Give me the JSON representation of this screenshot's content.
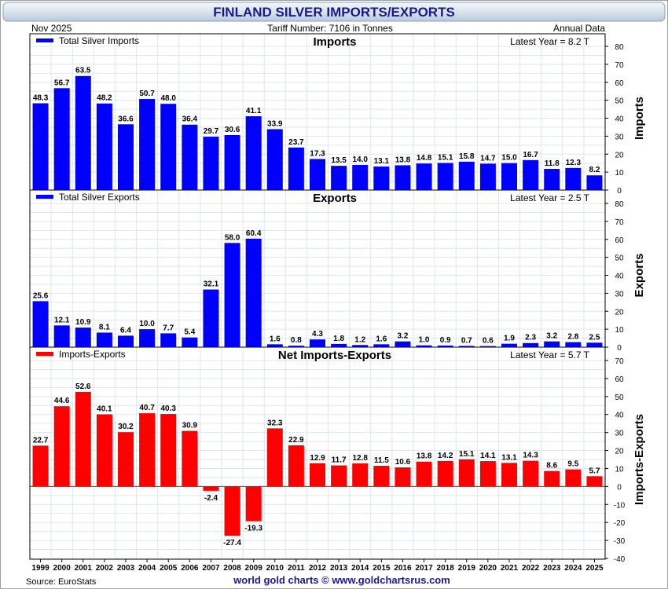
{
  "header": {
    "title": "FINLAND SILVER IMPORTS/EXPORTS",
    "date": "Nov  2025",
    "tariff": "Tariff Number: 7106 in Tonnes",
    "frequency": "Annual Data"
  },
  "footer": {
    "source": "Source: EuroStats",
    "credit": "world gold charts © www.goldchartsrus.com"
  },
  "colors": {
    "imports": "#0000ff",
    "exports": "#0000ff",
    "net": "#ff0000",
    "title_text": "#1a1a8c",
    "background": "#ffffff",
    "grid": "#dde6ee"
  },
  "chart_data": [
    {
      "type": "bar",
      "title": "Imports",
      "legend": "Total Silver Imports",
      "latest": "Latest Year = 8.2 T",
      "ylabel": "Imports",
      "ylim": [
        0,
        80
      ],
      "yticks": [
        0,
        10,
        20,
        30,
        40,
        50,
        60,
        70,
        80
      ],
      "categories": [
        "1999",
        "2000",
        "2001",
        "2002",
        "2003",
        "2004",
        "2005",
        "2006",
        "2007",
        "2008",
        "2009",
        "2010",
        "2011",
        "2012",
        "2013",
        "2014",
        "2015",
        "2016",
        "2017",
        "2018",
        "2019",
        "2020",
        "2021",
        "2022",
        "2023",
        "2024",
        "2025"
      ],
      "values": [
        48.3,
        56.7,
        63.5,
        48.2,
        36.6,
        50.7,
        48.0,
        36.4,
        29.7,
        30.6,
        41.1,
        33.9,
        23.7,
        17.3,
        13.5,
        14.0,
        13.1,
        13.8,
        14.8,
        15.1,
        15.8,
        14.7,
        15.0,
        16.7,
        11.8,
        12.3,
        8.2
      ],
      "labels": [
        "48.3",
        "56.7",
        "63.5",
        "48.2",
        "36.6",
        "50.7",
        "48.0",
        "36.4",
        "29.7",
        "30.6",
        "41.1",
        "33.9",
        "23.7",
        "17.3",
        "13.5",
        "14.0",
        "13.1",
        "13.8",
        "14.8",
        "15.1",
        "15.8",
        "14.7",
        "15.0",
        "16.7",
        "11.8",
        "12.3",
        "8.2"
      ]
    },
    {
      "type": "bar",
      "title": "Exports",
      "legend": "Total Silver Exports",
      "latest": "Latest Year = 2.5 T",
      "ylabel": "Exports",
      "ylim": [
        0,
        80
      ],
      "yticks": [
        0,
        10,
        20,
        30,
        40,
        50,
        60,
        70,
        80
      ],
      "categories": [
        "1999",
        "2000",
        "2001",
        "2002",
        "2003",
        "2004",
        "2005",
        "2006",
        "2007",
        "2008",
        "2009",
        "2010",
        "2011",
        "2012",
        "2013",
        "2014",
        "2015",
        "2016",
        "2017",
        "2018",
        "2019",
        "2020",
        "2021",
        "2022",
        "2023",
        "2024",
        "2025"
      ],
      "values": [
        25.6,
        12.1,
        10.9,
        8.1,
        6.4,
        10.0,
        7.7,
        5.4,
        32.1,
        58.0,
        60.4,
        1.6,
        0.8,
        4.3,
        1.8,
        1.2,
        1.6,
        3.2,
        1.0,
        0.9,
        0.7,
        0.6,
        1.9,
        2.3,
        3.2,
        2.8,
        2.5
      ],
      "labels": [
        "25.6",
        "12.1",
        "10.9",
        "8.1",
        "6.4",
        "10.0",
        "7.7",
        "5.4",
        "32.1",
        "58.0",
        "60.4",
        "1.6",
        "0.8",
        "4.3",
        "1.8",
        "1.2",
        "1.6",
        "3.2",
        "1.0",
        "0.9",
        "0.7",
        "0.6",
        "1.9",
        "2.3",
        "3.2",
        "2.8",
        "2.5"
      ]
    },
    {
      "type": "bar",
      "title": "Net Imports-Exports",
      "legend": "Imports-Exports",
      "latest": "Latest Year = 5.7 T",
      "ylabel": "Imports-Exports",
      "ylim": [
        -40,
        70
      ],
      "yticks": [
        -40,
        -30,
        -20,
        -10,
        0,
        10,
        20,
        30,
        40,
        50,
        60,
        70
      ],
      "categories": [
        "1999",
        "2000",
        "2001",
        "2002",
        "2003",
        "2004",
        "2005",
        "2006",
        "2007",
        "2008",
        "2009",
        "2010",
        "2011",
        "2012",
        "2013",
        "2014",
        "2015",
        "2016",
        "2017",
        "2018",
        "2019",
        "2020",
        "2021",
        "2022",
        "2023",
        "2024",
        "2025"
      ],
      "values": [
        22.7,
        44.6,
        52.6,
        40.1,
        30.2,
        40.7,
        40.3,
        30.9,
        -2.4,
        -27.4,
        -19.3,
        32.3,
        22.9,
        12.9,
        11.7,
        12.8,
        11.5,
        10.6,
        13.8,
        14.2,
        15.1,
        14.1,
        13.1,
        14.3,
        8.6,
        9.5,
        5.7
      ],
      "labels": [
        "22.7",
        "44.6",
        "52.6",
        "40.1",
        "30.2",
        "40.7",
        "40.3",
        "30.9",
        "-2.4",
        "-27.4",
        "-19.3",
        "32.3",
        "22.9",
        "12.9",
        "11.7",
        "12.8",
        "11.5",
        "10.6",
        "13.8",
        "14.2",
        "15.1",
        "14.1",
        "13.1",
        "14.3",
        "8.6",
        "9.5",
        "5.7"
      ]
    }
  ]
}
